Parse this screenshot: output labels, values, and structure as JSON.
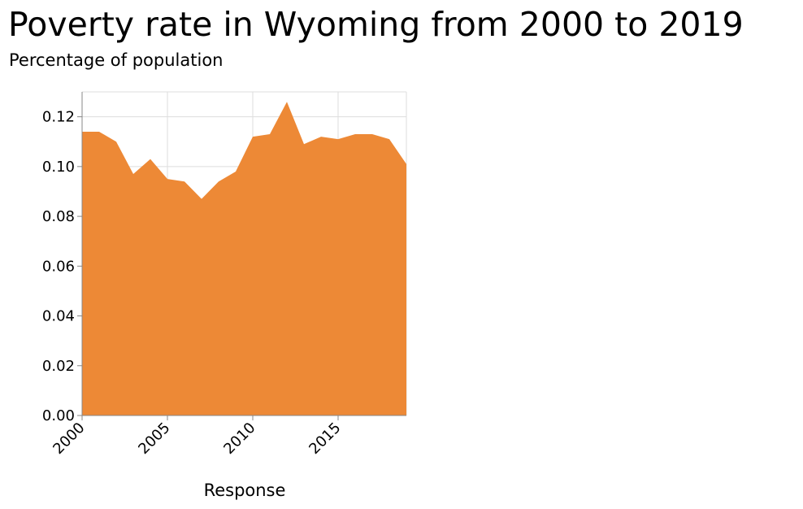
{
  "chart_data": {
    "type": "area",
    "title": "Poverty rate in Wyoming from 2000 to 2019",
    "subtitle": "Percentage of population",
    "xlabel": "Response",
    "ylabel": "",
    "xlim": [
      2000,
      2019
    ],
    "ylim": [
      0,
      0.13
    ],
    "x_ticks": [
      2000,
      2005,
      2010,
      2015
    ],
    "x_tick_labels": [
      "2000",
      "2005",
      "2010",
      "2015"
    ],
    "y_ticks": [
      0,
      0.02,
      0.04,
      0.06,
      0.08,
      0.1,
      0.12
    ],
    "y_tick_labels": [
      "0.00",
      "0.02",
      "0.04",
      "0.06",
      "0.08",
      "0.10",
      "0.12"
    ],
    "grid": true,
    "series": [
      {
        "color": "#ed8936",
        "x": [
          2000,
          2001,
          2002,
          2003,
          2004,
          2005,
          2006,
          2007,
          2008,
          2009,
          2010,
          2011,
          2012,
          2013,
          2014,
          2015,
          2016,
          2017,
          2018,
          2019
        ],
        "values": [
          0.114,
          0.114,
          0.11,
          0.097,
          0.103,
          0.095,
          0.094,
          0.087,
          0.094,
          0.098,
          0.112,
          0.113,
          0.126,
          0.109,
          0.112,
          0.111,
          0.113,
          0.113,
          0.111,
          0.101
        ]
      }
    ]
  }
}
